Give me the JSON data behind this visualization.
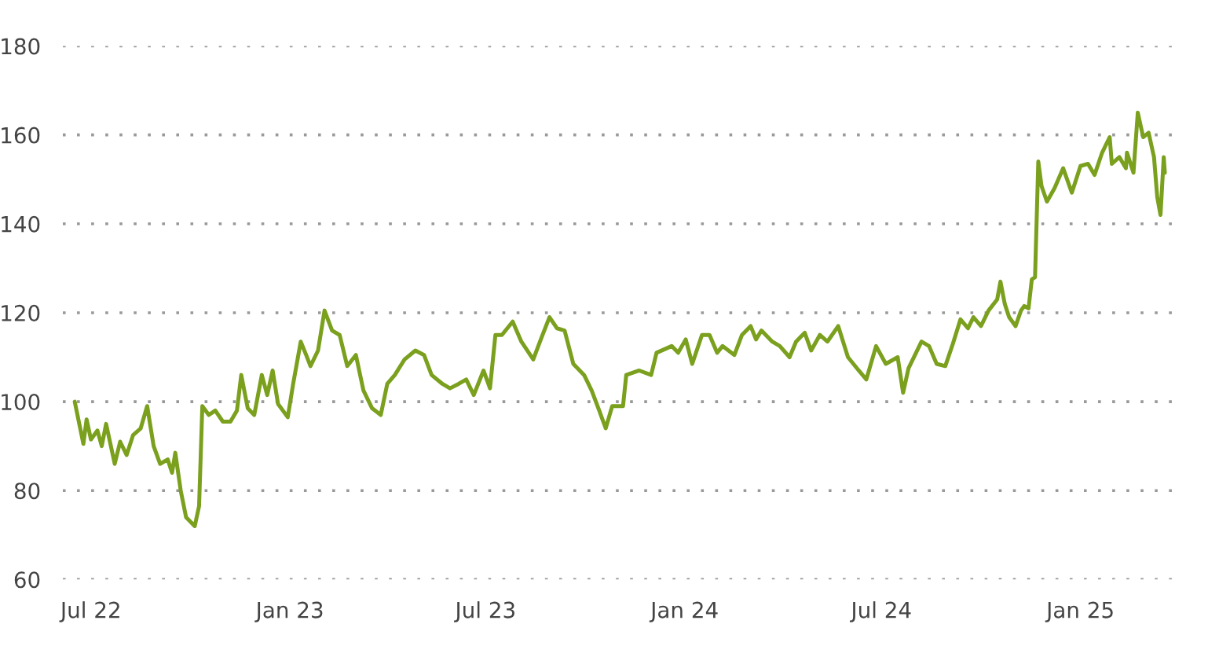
{
  "chart_data": {
    "type": "line",
    "x": [
      "2022-06-16",
      "2022-06-24",
      "2022-06-27",
      "2022-07-01",
      "2022-07-07",
      "2022-07-11",
      "2022-07-15",
      "2022-07-23",
      "2022-07-28",
      "2022-08-03",
      "2022-08-09",
      "2022-08-16",
      "2022-08-22",
      "2022-08-28",
      "2022-09-03",
      "2022-09-10",
      "2022-09-14",
      "2022-09-17",
      "2022-09-22",
      "2022-09-27",
      "2022-10-05",
      "2022-10-09",
      "2022-10-12",
      "2022-10-18",
      "2022-10-24",
      "2022-10-31",
      "2022-11-07",
      "2022-11-13",
      "2022-11-17",
      "2022-11-23",
      "2022-11-29",
      "2022-12-06",
      "2022-12-11",
      "2022-12-16",
      "2022-12-21",
      "2022-12-30",
      "2023-01-04",
      "2023-01-11",
      "2023-01-16",
      "2023-01-20",
      "2023-01-27",
      "2023-02-02",
      "2023-02-09",
      "2023-02-16",
      "2023-02-23",
      "2023-03-03",
      "2023-03-10",
      "2023-03-18",
      "2023-03-26",
      "2023-04-01",
      "2023-04-08",
      "2023-04-17",
      "2023-04-27",
      "2023-05-05",
      "2023-05-12",
      "2023-05-22",
      "2023-05-29",
      "2023-06-06",
      "2023-06-13",
      "2023-06-20",
      "2023-06-29",
      "2023-07-05",
      "2023-07-10",
      "2023-07-16",
      "2023-07-26",
      "2023-08-03",
      "2023-08-14",
      "2023-08-21",
      "2023-08-29",
      "2023-09-05",
      "2023-09-12",
      "2023-09-20",
      "2023-09-30",
      "2023-10-07",
      "2023-10-14",
      "2023-10-20",
      "2023-10-26",
      "2023-11-05",
      "2023-11-08",
      "2023-11-20",
      "2023-12-01",
      "2023-12-06",
      "2023-12-20",
      "2023-12-26",
      "2024-01-02",
      "2024-01-08",
      "2024-01-17",
      "2024-01-24",
      "2024-01-31",
      "2024-02-05",
      "2024-02-16",
      "2024-02-23",
      "2024-03-02",
      "2024-03-07",
      "2024-03-12",
      "2024-03-22",
      "2024-03-29",
      "2024-04-07",
      "2024-04-13",
      "2024-04-21",
      "2024-04-27",
      "2024-05-05",
      "2024-05-12",
      "2024-05-22",
      "2024-05-31",
      "2024-06-10",
      "2024-06-17",
      "2024-06-26",
      "2024-07-05",
      "2024-07-16",
      "2024-07-21",
      "2024-07-26",
      "2024-08-07",
      "2024-08-14",
      "2024-08-21",
      "2024-08-29",
      "2024-09-05",
      "2024-09-12",
      "2024-09-19",
      "2024-09-24",
      "2024-10-01",
      "2024-10-08",
      "2024-10-16",
      "2024-10-19",
      "2024-10-23",
      "2024-10-27",
      "2024-11-02",
      "2024-11-07",
      "2024-11-10",
      "2024-11-14",
      "2024-11-17",
      "2024-11-20",
      "2024-11-23",
      "2024-11-26",
      "2024-12-01",
      "2024-12-08",
      "2024-12-16",
      "2024-12-24",
      "2025-01-01",
      "2025-01-08",
      "2025-01-14",
      "2025-01-21",
      "2025-01-28",
      "2025-01-30",
      "2025-02-06",
      "2025-02-12",
      "2025-02-13",
      "2025-02-19",
      "2025-02-23",
      "2025-02-28",
      "2025-03-05",
      "2025-03-10",
      "2025-03-13",
      "2025-03-16",
      "2025-03-19",
      "2025-03-20"
    ],
    "series": [
      {
        "color": "#7aa01e",
        "values": [
          100,
          90.5,
          96,
          91.5,
          93.5,
          90,
          95,
          86,
          91,
          88,
          92.5,
          94,
          99,
          90,
          86,
          87,
          84,
          88.5,
          80,
          74,
          72,
          76.5,
          99,
          97,
          98,
          95.5,
          95.5,
          98,
          106,
          98.5,
          97,
          106,
          101.5,
          107,
          99.5,
          96.5,
          104,
          113.5,
          110.5,
          108,
          111.5,
          120.5,
          116,
          115,
          108,
          110.5,
          102.5,
          98.5,
          97,
          104,
          106,
          109.5,
          111.5,
          110.5,
          106,
          104,
          103,
          104,
          105,
          101.5,
          107,
          103,
          115,
          115,
          118,
          113.5,
          109.5,
          114,
          119,
          116.5,
          116,
          108.5,
          106,
          102.5,
          98,
          94,
          99,
          99,
          106,
          107,
          106,
          111,
          112.5,
          111,
          114,
          108.5,
          115,
          115,
          111,
          112.5,
          110.5,
          115,
          117,
          114,
          116,
          113.5,
          112.5,
          110,
          113.5,
          115.5,
          111.5,
          115,
          113.5,
          117,
          110,
          107,
          105,
          112.5,
          108.5,
          110,
          102,
          107.5,
          113.5,
          112.5,
          108.5,
          108,
          113,
          118.5,
          116.5,
          119,
          117,
          120.5,
          123,
          127,
          122,
          119,
          117,
          120.5,
          121.5,
          121,
          127.5,
          128,
          154,
          148.5,
          145,
          148,
          152.5,
          147,
          153,
          153.5,
          151,
          156,
          159.5,
          153.5,
          155,
          152.5,
          156,
          151.5,
          165,
          159.5,
          160.5,
          155,
          146,
          142,
          155,
          151.5
        ]
      }
    ],
    "xlim": [
      "2022-06-05",
      "2025-04-01"
    ],
    "xticks": [
      {
        "value": "2022-07-01",
        "label": "Jul 22"
      },
      {
        "value": "2023-01-01",
        "label": "Jan 23"
      },
      {
        "value": "2023-07-01",
        "label": "Jul 23"
      },
      {
        "value": "2024-01-01",
        "label": "Jan 24"
      },
      {
        "value": "2024-07-01",
        "label": "Jul 24"
      },
      {
        "value": "2025-01-01",
        "label": "Jan 25"
      }
    ],
    "ylim": [
      60,
      180
    ],
    "yticks": [
      60,
      80,
      100,
      120,
      140,
      160,
      180
    ],
    "grid": "y",
    "line_style": "solid"
  }
}
